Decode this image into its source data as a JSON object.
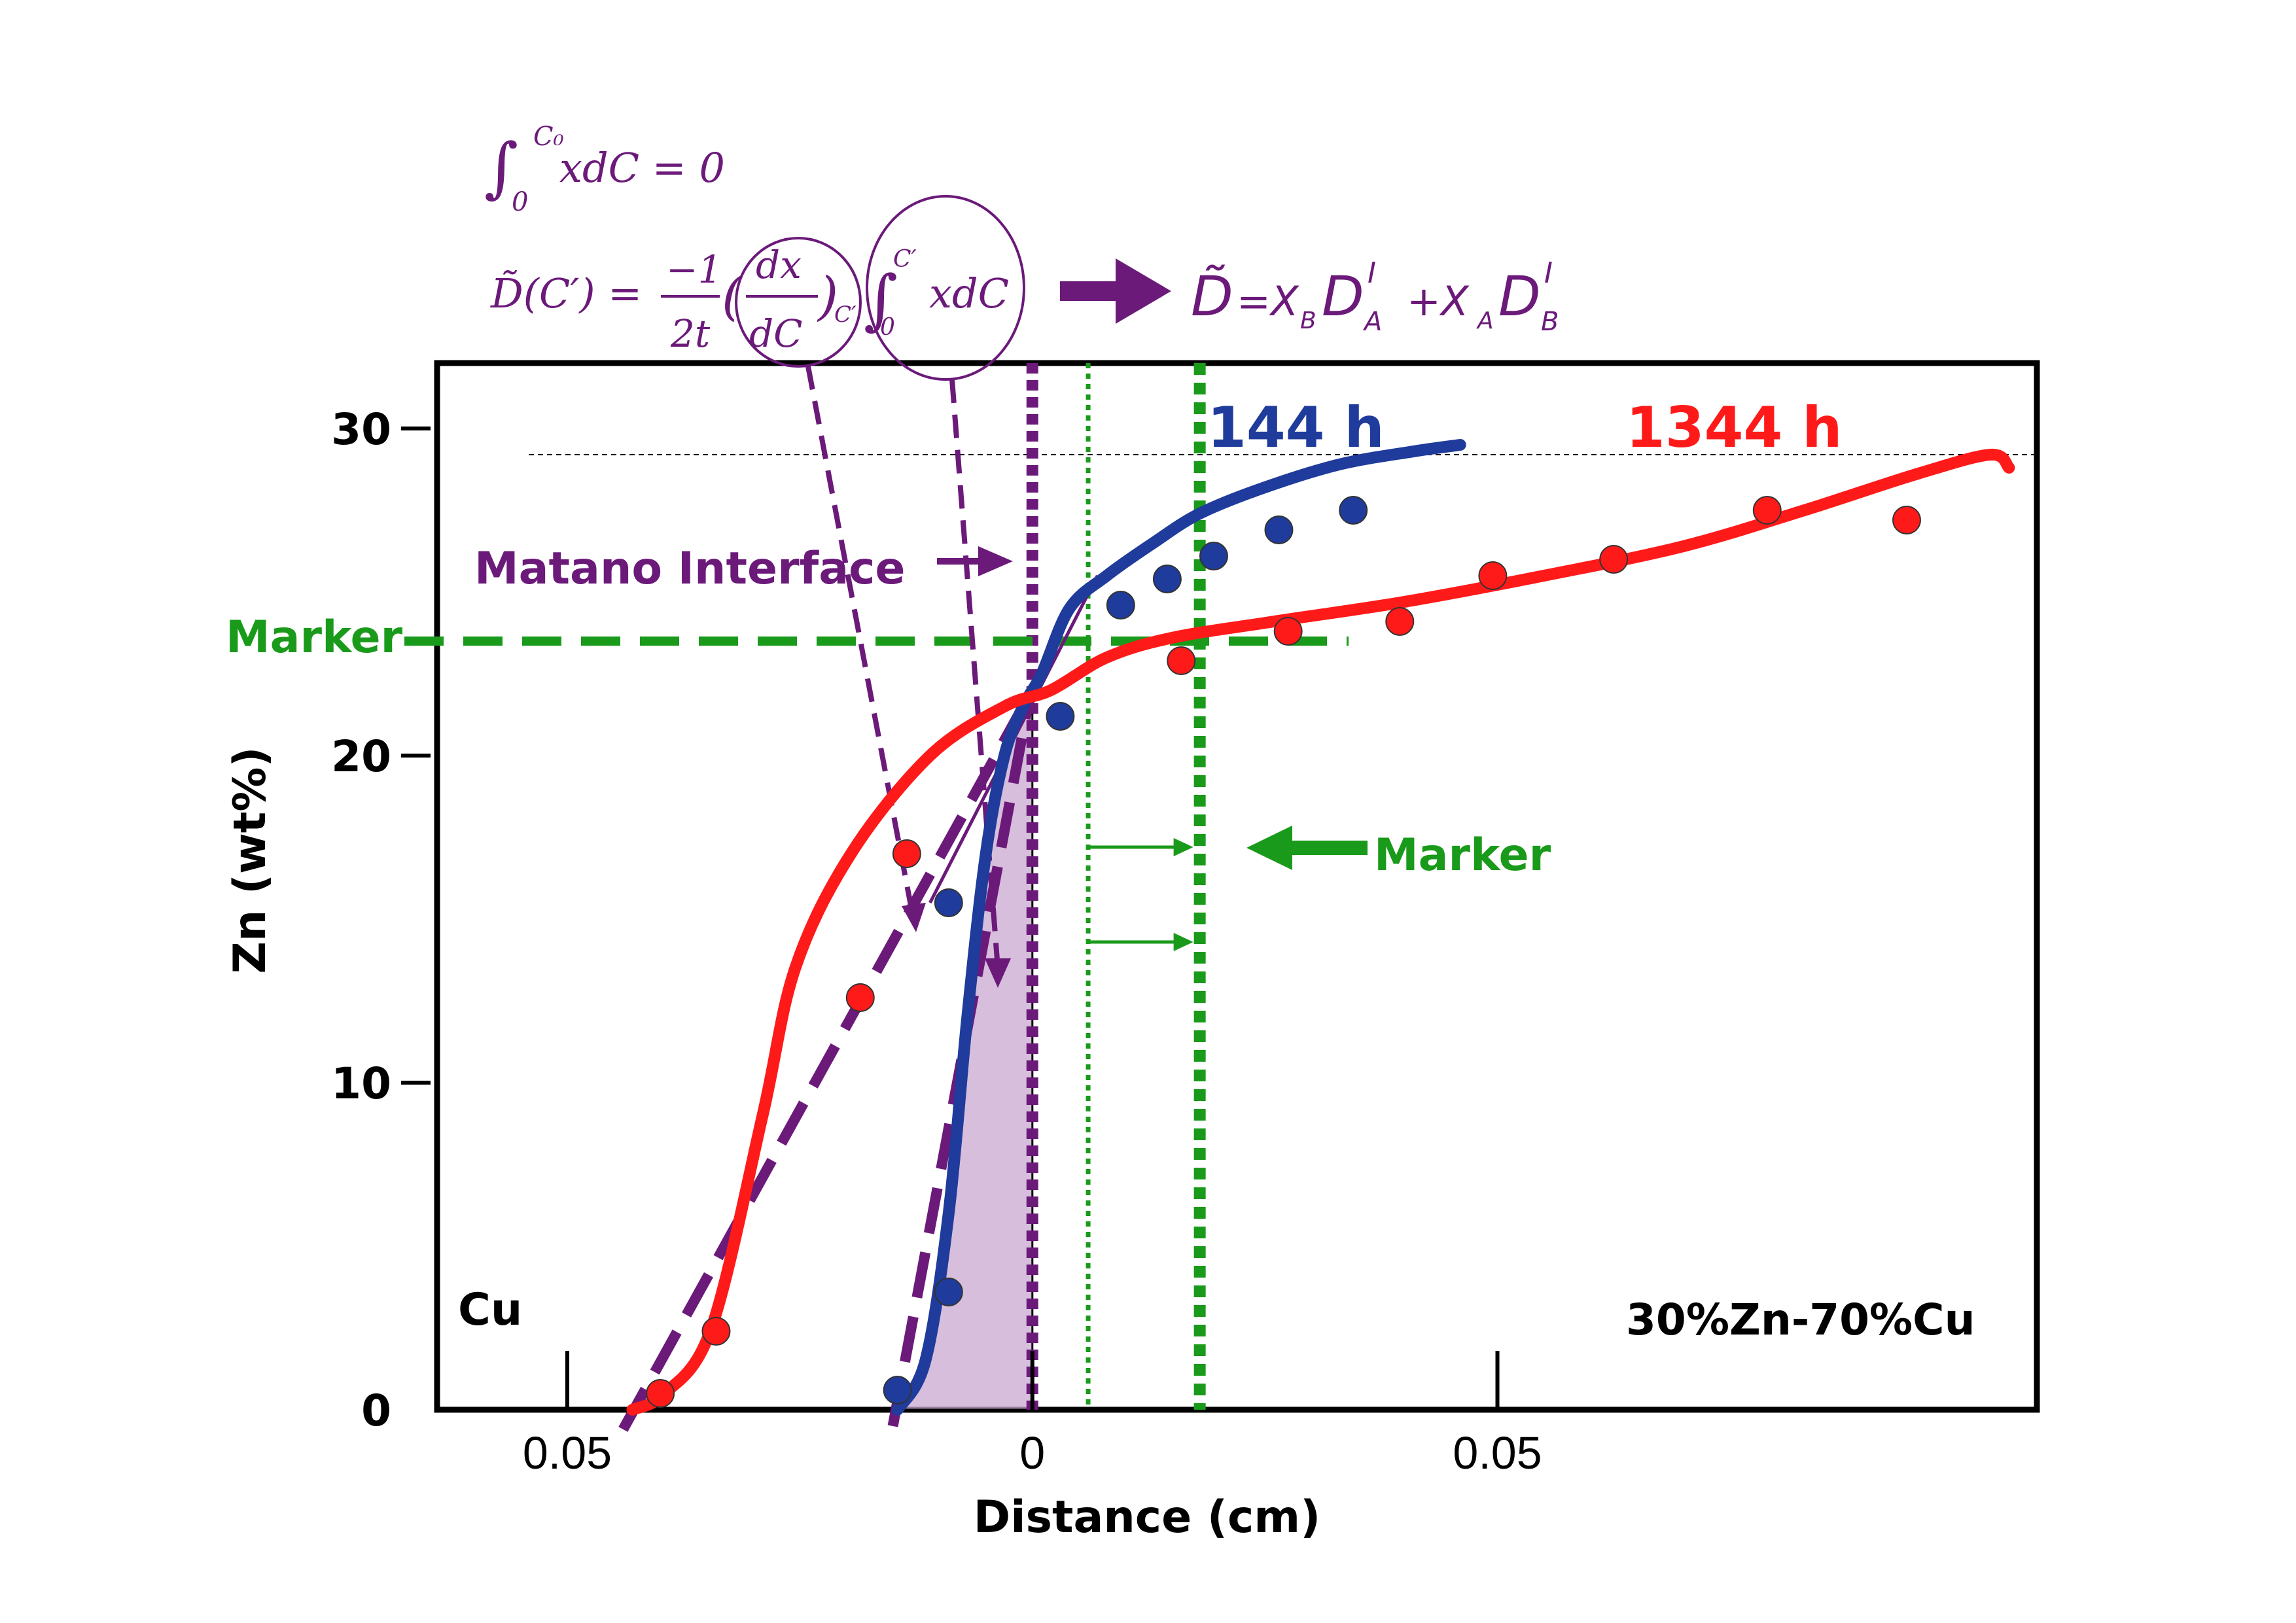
{
  "colors": {
    "red": "#ff1a1a",
    "blue": "#1f3b9b",
    "purple": "#6b1a7a",
    "green": "#1a9a1a",
    "shade": "#c8a8d0"
  },
  "chart_data": {
    "type": "line",
    "xlabel": "Distance (cm)",
    "ylabel": "Zn (wt%)",
    "xlim": [
      -0.064,
      0.108
    ],
    "ylim": [
      0,
      32
    ],
    "xticks": [
      {
        "value": -0.05,
        "label": "0.05"
      },
      {
        "value": 0,
        "label": "0"
      },
      {
        "value": 0.05,
        "label": "0.05"
      }
    ],
    "yticks": [
      {
        "value": 0,
        "label": "0"
      },
      {
        "value": 10,
        "label": "10"
      },
      {
        "value": 20,
        "label": "20"
      },
      {
        "value": 30,
        "label": "30"
      }
    ],
    "series": [
      {
        "name": "144 h",
        "color": "#1f3b9b",
        "curve": [
          [
            -0.0145,
            0
          ],
          [
            -0.0115,
            1.5
          ],
          [
            -0.009,
            6
          ],
          [
            -0.007,
            12
          ],
          [
            -0.005,
            17
          ],
          [
            -0.003,
            20
          ],
          [
            -0.001,
            21.5
          ],
          [
            0.001,
            22.5
          ],
          [
            0.004,
            24.5
          ],
          [
            0.008,
            25.5
          ],
          [
            0.013,
            26.5
          ],
          [
            0.018,
            27.4
          ],
          [
            0.025,
            28.2
          ],
          [
            0.033,
            28.9
          ],
          [
            0.041,
            29.3
          ],
          [
            0.046,
            29.5
          ]
        ],
        "points": [
          [
            -0.0145,
            0.6
          ],
          [
            -0.009,
            3.6
          ],
          [
            -0.009,
            15.5
          ],
          [
            0.003,
            21.2
          ],
          [
            0.0095,
            24.6
          ],
          [
            0.0145,
            25.4
          ],
          [
            0.0195,
            26.1
          ],
          [
            0.0265,
            26.9
          ],
          [
            0.0345,
            27.5
          ]
        ]
      },
      {
        "name": "1344 h",
        "color": "#ff1a1a",
        "curve": [
          [
            -0.043,
            0
          ],
          [
            -0.0395,
            0.5
          ],
          [
            -0.0345,
            2.5
          ],
          [
            -0.029,
            9
          ],
          [
            -0.0255,
            13.5
          ],
          [
            -0.0195,
            17
          ],
          [
            -0.011,
            20
          ],
          [
            -0.003,
            21.5
          ],
          [
            0.002,
            22
          ],
          [
            0.008,
            23
          ],
          [
            0.015,
            23.6
          ],
          [
            0.026,
            24.1
          ],
          [
            0.04,
            24.7
          ],
          [
            0.055,
            25.5
          ],
          [
            0.07,
            26.4
          ],
          [
            0.083,
            27.5
          ],
          [
            0.095,
            28.6
          ],
          [
            0.103,
            29.2
          ],
          [
            0.105,
            28.8
          ]
        ],
        "points": [
          [
            -0.04,
            0.5
          ],
          [
            -0.034,
            2.4
          ],
          [
            -0.0185,
            12.6
          ],
          [
            -0.0135,
            17.0
          ],
          [
            0.016,
            22.9
          ],
          [
            0.0275,
            23.8
          ],
          [
            0.0395,
            24.1
          ],
          [
            0.0495,
            25.5
          ],
          [
            0.0625,
            26.0
          ],
          [
            0.079,
            27.5
          ],
          [
            0.094,
            27.2
          ]
        ]
      }
    ],
    "annotations": {
      "series_label_144": "144 h",
      "series_label_1344": "1344 h",
      "matano_label": "Matano Interface",
      "marker_label_left": "Marker",
      "marker_label_right": "Marker",
      "cu_label": "Cu",
      "composition_label": "30%Zn-70%Cu",
      "matano_x": 0,
      "marker_initial_x": 0.006,
      "marker_final_x": 0.018,
      "marker_y": 23.5,
      "top_reference_y": 29.2
    },
    "equations": {
      "eq1_integral": "∫",
      "eq1_upper": "C₀",
      "eq1_lower": "0",
      "eq1_body": "xdC = 0",
      "eq2_lhs": "D̃(C′) =",
      "eq2_frac_num": "−1",
      "eq2_frac_den": "2t",
      "eq2_deriv_num": "dx",
      "eq2_deriv_den": "dC",
      "eq2_sub": "C′",
      "eq2_int_upper": "C′",
      "eq2_int_lower": "0",
      "eq2_body": "xdC",
      "darken_lhs": "D̃",
      "darken_rhs": "=X",
      "darken_b": "B",
      "darken_da": "D",
      "darken_a_sub": "A",
      "darken_i1": "I",
      "darken_plus": "+X",
      "darken_a2": "A",
      "darken_db": "D",
      "darken_b_sub": "B",
      "darken_i2": "I"
    }
  }
}
